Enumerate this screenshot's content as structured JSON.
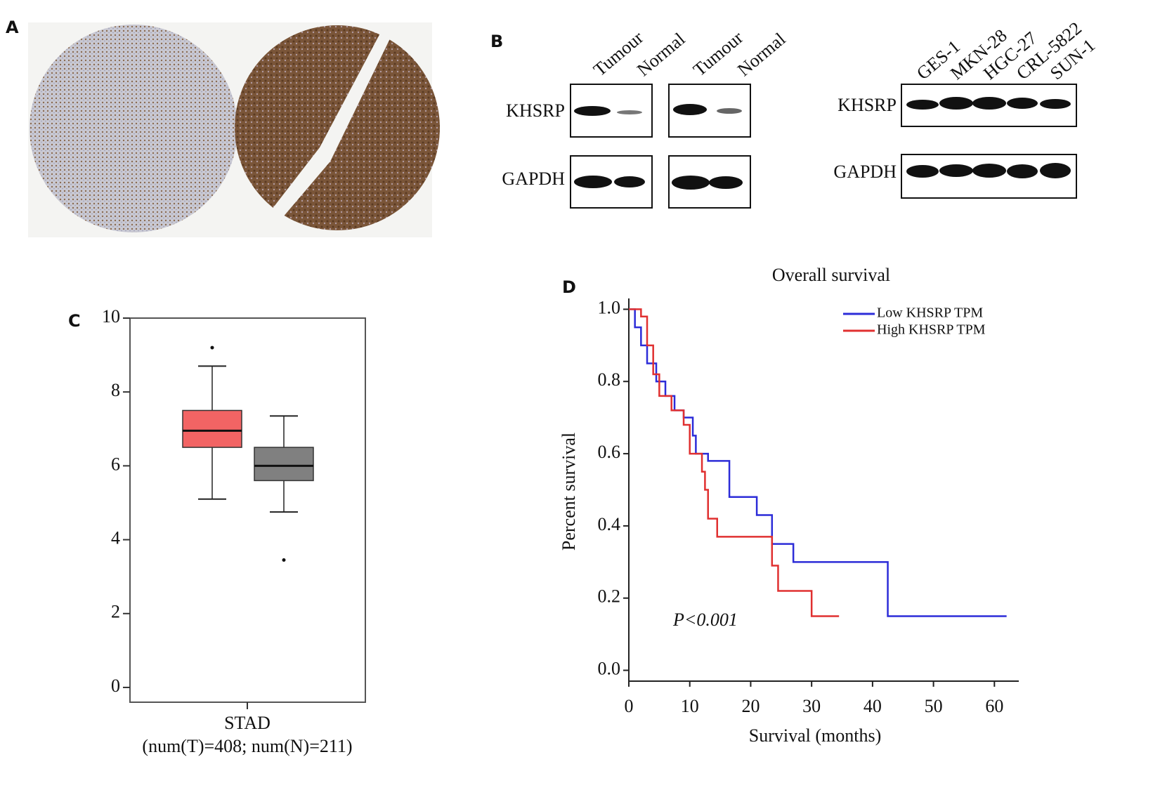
{
  "panels": {
    "a": "A",
    "b": "B",
    "c": "C",
    "d": "D"
  },
  "blot": {
    "lanes_left": [
      "Tumour",
      "Normal",
      "Tumour",
      "Normal"
    ],
    "lanes_right": [
      "GES-1",
      "MKN-28",
      "HGC-27",
      "CRL-5822",
      "SUN-1"
    ],
    "proteins": [
      "KHSRP",
      "GAPDH"
    ]
  },
  "chart_data": [
    {
      "type": "box",
      "categories": [
        "STAD"
      ],
      "xlabel": "(num(T)=408; num(N)=211)",
      "ylim": [
        -0.4,
        10
      ],
      "yticks": [
        0,
        2,
        4,
        6,
        8,
        10
      ],
      "series": [
        {
          "color": "#f26464",
          "min": 5.1,
          "q1": 6.5,
          "median": 6.95,
          "q3": 7.5,
          "max": 8.7,
          "outliers": [
            9.2
          ]
        },
        {
          "color": "#808080",
          "min": 4.75,
          "q1": 5.6,
          "median": 6.0,
          "q3": 6.5,
          "max": 7.35,
          "outliers": [
            3.45
          ]
        }
      ]
    },
    {
      "type": "line",
      "title": "Overall survival",
      "xlabel": "Survival (months)",
      "ylabel": "Percent survival",
      "annotation": "P<0.001",
      "legend": "top-right",
      "step": true,
      "xlim": [
        0,
        64
      ],
      "xticks": [
        0,
        10,
        20,
        30,
        40,
        50,
        60
      ],
      "ylim": [
        -0.03,
        1.03
      ],
      "yticks": [
        {
          "value": 0,
          "label": "0.0"
        },
        {
          "value": 0.2,
          "label": "0.2"
        },
        {
          "value": 0.4,
          "label": "0.4"
        },
        {
          "value": 0.6,
          "label": "0.6"
        },
        {
          "value": 0.8,
          "label": "0.8"
        },
        {
          "value": 1,
          "label": "1.0"
        }
      ],
      "series": [
        {
          "name": "Low KHSRP TPM",
          "color": "#2c2cd8",
          "x": [
            0,
            1,
            2,
            3,
            4.5,
            6,
            7.5,
            9,
            10.5,
            11,
            13,
            16.5,
            21,
            23.5,
            27,
            42.5,
            62
          ],
          "values": [
            1,
            0.95,
            0.9,
            0.85,
            0.8,
            0.76,
            0.72,
            0.7,
            0.65,
            0.6,
            0.58,
            0.48,
            0.43,
            0.35,
            0.3,
            0.15,
            0.15
          ]
        },
        {
          "name": "High KHSRP TPM",
          "color": "#e03030",
          "x": [
            0,
            2,
            3,
            4,
            5,
            7,
            9,
            10,
            12,
            12.5,
            13,
            14.5,
            23.5,
            24.5,
            30,
            34.5
          ],
          "values": [
            1,
            0.98,
            0.9,
            0.82,
            0.76,
            0.72,
            0.68,
            0.6,
            0.55,
            0.5,
            0.42,
            0.37,
            0.29,
            0.22,
            0.15,
            0.15
          ]
        }
      ]
    }
  ]
}
